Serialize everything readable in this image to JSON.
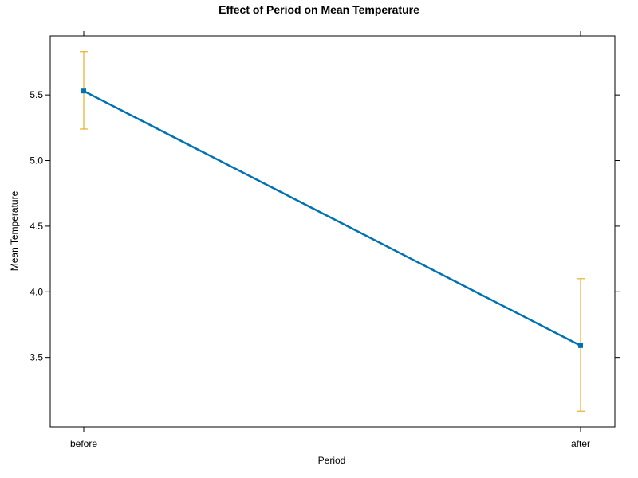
{
  "chart_data": {
    "type": "line",
    "title": "Effect of Period on Mean Temperature",
    "xlabel": "Period",
    "ylabel": "Mean Temperature",
    "categories": [
      "before",
      "after"
    ],
    "values": [
      5.53,
      3.59
    ],
    "error_bars": [
      {
        "lower": 5.24,
        "upper": 5.83
      },
      {
        "lower": 3.09,
        "upper": 4.1
      }
    ],
    "ylim": [
      2.97,
      5.95
    ],
    "yticks": [
      3.5,
      4.0,
      4.5,
      5.0,
      5.5
    ],
    "ytick_labels": [
      "3.5",
      "4.0",
      "4.5",
      "5.0",
      "5.5"
    ],
    "grid": false,
    "colors": {
      "line": "#0072B2",
      "error_bar": "#E69F00",
      "axis": "#000000"
    }
  }
}
